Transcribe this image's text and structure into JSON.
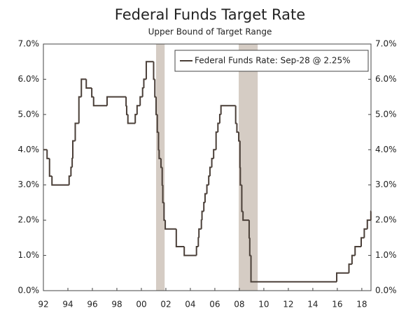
{
  "chart_data": {
    "type": "step-line",
    "title": "Federal Funds Target Rate",
    "subtitle": "Upper Bound of Target Range",
    "series": [
      {
        "name": "Federal Funds Rate: Sep-28 @ 2.25%",
        "color": "#4a3f38",
        "x": [
          1992.0,
          1992.3,
          1992.5,
          1992.7,
          1994.1,
          1994.25,
          1994.35,
          1994.4,
          1994.6,
          1994.9,
          1995.1,
          1995.5,
          1995.95,
          1996.1,
          1997.2,
          1998.75,
          1998.8,
          1998.9,
          1999.5,
          1999.65,
          1999.9,
          2000.1,
          2000.2,
          2000.4,
          2001.0,
          2001.1,
          2001.2,
          2001.3,
          2001.4,
          2001.45,
          2001.6,
          2001.7,
          2001.75,
          2001.85,
          2001.95,
          2002.85,
          2003.5,
          2004.5,
          2004.65,
          2004.7,
          2004.9,
          2004.95,
          2005.1,
          2005.2,
          2005.35,
          2005.5,
          2005.6,
          2005.75,
          2005.9,
          2006.1,
          2006.25,
          2006.4,
          2006.5,
          2007.7,
          2007.8,
          2007.95,
          2008.05,
          2008.08,
          2008.2,
          2008.3,
          2008.8,
          2008.85,
          2008.95,
          2015.95,
          2016.95,
          2017.2,
          2017.45,
          2017.95,
          2018.2,
          2018.45,
          2018.74
        ],
        "values": [
          4.0,
          3.75,
          3.25,
          3.0,
          3.25,
          3.5,
          3.75,
          4.25,
          4.75,
          5.5,
          6.0,
          5.75,
          5.5,
          5.25,
          5.5,
          5.25,
          5.0,
          4.75,
          5.0,
          5.25,
          5.5,
          5.75,
          6.0,
          6.5,
          6.0,
          5.5,
          5.0,
          4.5,
          4.0,
          3.75,
          3.5,
          3.0,
          2.5,
          2.0,
          1.75,
          1.25,
          1.0,
          1.25,
          1.5,
          1.75,
          2.0,
          2.25,
          2.5,
          2.75,
          3.0,
          3.25,
          3.5,
          3.75,
          4.0,
          4.5,
          4.75,
          5.0,
          5.25,
          4.75,
          4.5,
          4.25,
          3.5,
          3.0,
          2.25,
          2.0,
          1.5,
          1.0,
          0.25,
          0.5,
          0.75,
          1.0,
          1.25,
          1.5,
          1.75,
          2.0,
          2.25
        ]
      }
    ],
    "recessions": [
      [
        2001.2,
        2001.9
      ],
      [
        2007.95,
        2009.5
      ]
    ],
    "recession_color": "#d5ccc4",
    "xlim": [
      1992,
      2018.75
    ],
    "xticks": [
      {
        "value": 1992,
        "label": "92"
      },
      {
        "value": 1994,
        "label": "94"
      },
      {
        "value": 1996,
        "label": "96"
      },
      {
        "value": 1998,
        "label": "98"
      },
      {
        "value": 2000,
        "label": "00"
      },
      {
        "value": 2002,
        "label": "02"
      },
      {
        "value": 2004,
        "label": "04"
      },
      {
        "value": 2006,
        "label": "06"
      },
      {
        "value": 2008,
        "label": "08"
      },
      {
        "value": 2010,
        "label": "10"
      },
      {
        "value": 2012,
        "label": "12"
      },
      {
        "value": 2014,
        "label": "14"
      },
      {
        "value": 2016,
        "label": "16"
      },
      {
        "value": 2018,
        "label": "18"
      }
    ],
    "ylim": [
      0,
      7
    ],
    "yticks": [
      {
        "value": 0,
        "label": "0.0%"
      },
      {
        "value": 1,
        "label": "1.0%"
      },
      {
        "value": 2,
        "label": "2.0%"
      },
      {
        "value": 3,
        "label": "3.0%"
      },
      {
        "value": 4,
        "label": "4.0%"
      },
      {
        "value": 5,
        "label": "5.0%"
      },
      {
        "value": 6,
        "label": "6.0%"
      },
      {
        "value": 7,
        "label": "7.0%"
      }
    ],
    "legend": "upper right"
  }
}
